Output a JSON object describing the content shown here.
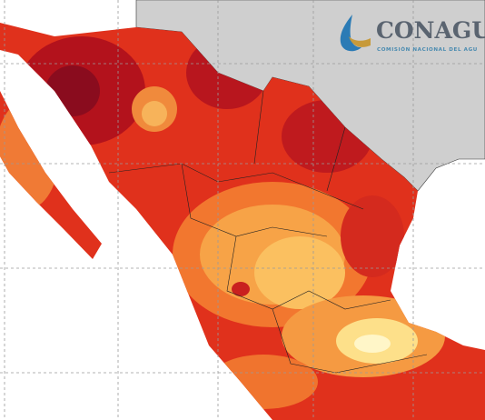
{
  "logo": {
    "title": "CONAGU",
    "subtitle": "COMISIÓN NACIONAL DEL AGU"
  }
}
